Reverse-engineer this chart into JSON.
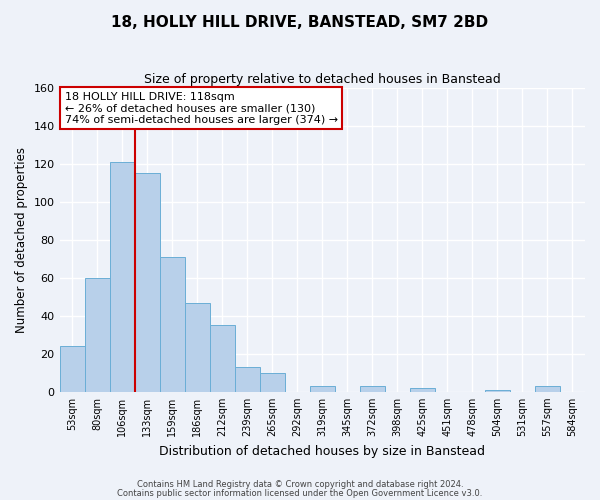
{
  "title": "18, HOLLY HILL DRIVE, BANSTEAD, SM7 2BD",
  "subtitle": "Size of property relative to detached houses in Banstead",
  "xlabel": "Distribution of detached houses by size in Banstead",
  "ylabel": "Number of detached properties",
  "bar_labels": [
    "53sqm",
    "80sqm",
    "106sqm",
    "133sqm",
    "159sqm",
    "186sqm",
    "212sqm",
    "239sqm",
    "265sqm",
    "292sqm",
    "319sqm",
    "345sqm",
    "372sqm",
    "398sqm",
    "425sqm",
    "451sqm",
    "478sqm",
    "504sqm",
    "531sqm",
    "557sqm",
    "584sqm"
  ],
  "bar_values": [
    24,
    60,
    121,
    115,
    71,
    47,
    35,
    13,
    10,
    0,
    3,
    0,
    3,
    0,
    2,
    0,
    0,
    1,
    0,
    3,
    0
  ],
  "bar_color": "#b8d0ea",
  "bar_edge_color": "#6aaed6",
  "vline_color": "#cc0000",
  "vline_x_index": 2.5,
  "ylim": [
    0,
    160
  ],
  "yticks": [
    0,
    20,
    40,
    60,
    80,
    100,
    120,
    140,
    160
  ],
  "annotation_title": "18 HOLLY HILL DRIVE: 118sqm",
  "annotation_line1": "← 26% of detached houses are smaller (130)",
  "annotation_line2": "74% of semi-detached houses are larger (374) →",
  "annotation_box_color": "#ffffff",
  "annotation_box_edge": "#cc0000",
  "footer1": "Contains HM Land Registry data © Crown copyright and database right 2024.",
  "footer2": "Contains public sector information licensed under the Open Government Licence v3.0.",
  "bg_color": "#eef2f9"
}
